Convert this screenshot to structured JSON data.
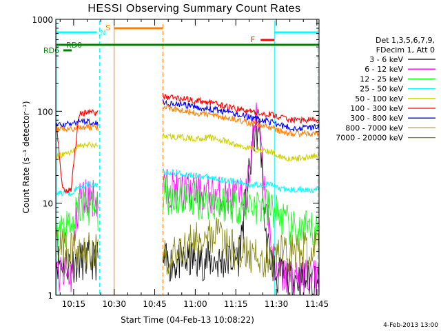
{
  "chart_data": {
    "type": "line",
    "title": "HESSI Observing Summary Count Rates",
    "xlabel": "Start Time (04-Feb-13 10:08:22)",
    "ylabel": "Count Rate (s⁻¹ detector⁻¹)",
    "yscale": "log",
    "ylim": [
      1,
      1000
    ],
    "xlim_minutes": [
      8.4,
      105.8
    ],
    "x_ticks": [
      {
        "label": "10:15",
        "minute": 15
      },
      {
        "label": "10:30",
        "minute": 30
      },
      {
        "label": "10:45",
        "minute": 45
      },
      {
        "label": "11:00",
        "minute": 60
      },
      {
        "label": "11:15",
        "minute": 75
      },
      {
        "label": "11:30",
        "minute": 90
      },
      {
        "label": "11:45",
        "minute": 105
      }
    ],
    "y_ticks": [
      "1",
      "10",
      "100",
      "1000"
    ],
    "legend_header": [
      "Det 1,3,5,6,7,9,",
      "FDecim 1, Att 0"
    ],
    "legend_position": "right",
    "annotations": {
      "night_label": "N",
      "saa_label": "S",
      "flare_label": "F",
      "rd0_label": "RD0",
      "rd6_label": "RD6"
    },
    "timestamp": "4-Feb-2013 13:00",
    "flags": {
      "night_color": "#00ffff",
      "saa_color": "#ff8000",
      "flare_color": "#ff0000",
      "decim_color": "#008000"
    },
    "series": [
      {
        "name": "3 - 6 keV",
        "color": "#000000",
        "seg1": [
          [
            8.4,
            2.4
          ],
          [
            14,
            2.2
          ],
          [
            19,
            2.4
          ],
          [
            24,
            2.4
          ]
        ],
        "seg2": [
          [
            48,
            2.2
          ],
          [
            60,
            2.4
          ],
          [
            70,
            2.3
          ],
          [
            76,
            2.6
          ],
          [
            79,
            12
          ],
          [
            82,
            60
          ],
          [
            84,
            58
          ],
          [
            86,
            4
          ],
          [
            90,
            1.6
          ],
          [
            96,
            1.5
          ],
          [
            105.8,
            1.5
          ]
        ]
      },
      {
        "name": "6 - 12 keV",
        "color": "#ff00ff",
        "seg1": [
          [
            8.4,
            1.6
          ],
          [
            14,
            1.6
          ],
          [
            17,
            12
          ],
          [
            21,
            12
          ],
          [
            24,
            11
          ]
        ],
        "seg2": [
          [
            48,
            15
          ],
          [
            60,
            13
          ],
          [
            70,
            12
          ],
          [
            76,
            11.5
          ],
          [
            79,
            12
          ],
          [
            82,
            80
          ],
          [
            84,
            75
          ],
          [
            86,
            11
          ],
          [
            90,
            1.6
          ],
          [
            96,
            1.6
          ],
          [
            105.8,
            1.6
          ]
        ]
      },
      {
        "name": "12 - 25 keV",
        "color": "#00ff00",
        "seg1": [
          [
            8.4,
            5
          ],
          [
            14,
            5
          ],
          [
            17,
            9
          ],
          [
            21,
            9
          ],
          [
            24,
            8
          ]
        ],
        "seg2": [
          [
            48,
            12
          ],
          [
            60,
            11
          ],
          [
            70,
            10
          ],
          [
            76,
            9.5
          ],
          [
            80,
            10
          ],
          [
            84,
            9
          ],
          [
            88,
            9
          ],
          [
            90,
            8
          ],
          [
            96,
            5
          ],
          [
            105.8,
            5
          ]
        ]
      },
      {
        "name": "25 - 50 keV",
        "color": "#00ffff",
        "seg1": [
          [
            8.4,
            13
          ],
          [
            14,
            13
          ],
          [
            17,
            15
          ],
          [
            21,
            16
          ],
          [
            24,
            16
          ]
        ],
        "seg2": [
          [
            48,
            22
          ],
          [
            60,
            20
          ],
          [
            70,
            18
          ],
          [
            76,
            17
          ],
          [
            80,
            16
          ],
          [
            84,
            16
          ],
          [
            88,
            16
          ],
          [
            92,
            14
          ],
          [
            96,
            14
          ],
          [
            105.8,
            14
          ]
        ]
      },
      {
        "name": "50 - 100 keV",
        "color": "#d0d000",
        "seg1": [
          [
            8.4,
            32
          ],
          [
            14,
            36
          ],
          [
            17,
            42
          ],
          [
            21,
            43
          ],
          [
            24,
            42
          ]
        ],
        "seg2": [
          [
            48,
            54
          ],
          [
            55,
            52
          ],
          [
            60,
            50
          ],
          [
            65,
            52
          ],
          [
            70,
            48
          ],
          [
            76,
            42
          ],
          [
            80,
            40
          ],
          [
            84,
            38
          ],
          [
            88,
            36
          ],
          [
            92,
            32
          ],
          [
            96,
            30
          ],
          [
            105.8,
            33
          ]
        ]
      },
      {
        "name": "100 - 300 keV",
        "color": "#ff0000",
        "seg1": [
          [
            8.4,
            82
          ],
          [
            11,
            14
          ],
          [
            14,
            14
          ],
          [
            17,
            95
          ],
          [
            21,
            98
          ],
          [
            24,
            96
          ]
        ],
        "seg2": [
          [
            48,
            145
          ],
          [
            55,
            138
          ],
          [
            60,
            130
          ],
          [
            65,
            125
          ],
          [
            70,
            115
          ],
          [
            76,
            105
          ],
          [
            80,
            100
          ],
          [
            84,
            96
          ],
          [
            88,
            92
          ],
          [
            92,
            85
          ],
          [
            96,
            80
          ],
          [
            105.8,
            80
          ]
        ]
      },
      {
        "name": "300 - 800 keV",
        "color": "#0000ff",
        "seg1": [
          [
            8.4,
            70
          ],
          [
            14,
            72
          ],
          [
            17,
            78
          ],
          [
            21,
            77
          ],
          [
            24,
            75
          ]
        ],
        "seg2": [
          [
            48,
            125
          ],
          [
            55,
            118
          ],
          [
            60,
            110
          ],
          [
            65,
            106
          ],
          [
            70,
            100
          ],
          [
            76,
            92
          ],
          [
            80,
            86
          ],
          [
            84,
            82
          ],
          [
            88,
            76
          ],
          [
            92,
            70
          ],
          [
            96,
            65
          ],
          [
            105.8,
            68
          ]
        ]
      },
      {
        "name": "800 - 7000 keV",
        "color": "#ff8000",
        "seg1": [
          [
            8.4,
            62
          ],
          [
            14,
            64
          ],
          [
            17,
            68
          ],
          [
            21,
            67
          ],
          [
            24,
            66
          ]
        ],
        "seg2": [
          [
            48,
            110
          ],
          [
            55,
            104
          ],
          [
            60,
            96
          ],
          [
            65,
            92
          ],
          [
            70,
            87
          ],
          [
            76,
            80
          ],
          [
            80,
            75
          ],
          [
            84,
            71
          ],
          [
            88,
            66
          ],
          [
            92,
            60
          ],
          [
            96,
            56
          ],
          [
            105.8,
            58
          ]
        ]
      },
      {
        "name": "7000 - 20000 keV",
        "color": "#808000",
        "seg1": [
          [
            8.4,
            3.2
          ],
          [
            14,
            3.2
          ],
          [
            19,
            3.0
          ],
          [
            24,
            3.0
          ]
        ],
        "seg2": [
          [
            48,
            2.5
          ],
          [
            56,
            3.2
          ],
          [
            62,
            4.5
          ],
          [
            67,
            4.6
          ],
          [
            72,
            3.6
          ],
          [
            76,
            2.8
          ],
          [
            80,
            2.6
          ],
          [
            86,
            2.5
          ],
          [
            90,
            2.6
          ],
          [
            96,
            3.0
          ],
          [
            105.8,
            3.0
          ]
        ]
      }
    ]
  }
}
